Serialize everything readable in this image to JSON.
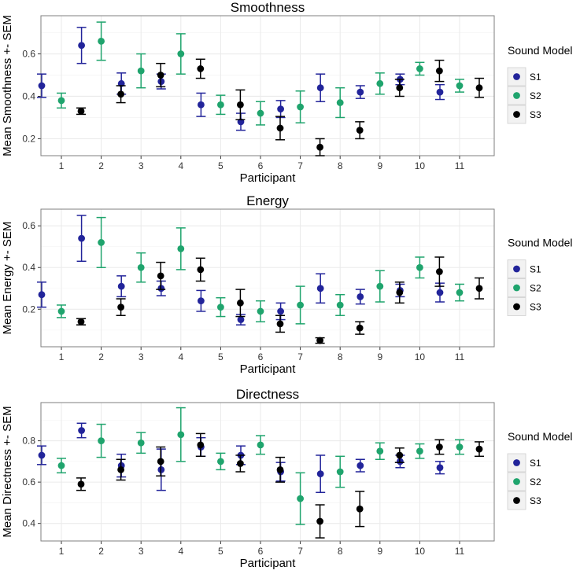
{
  "colors": {
    "S1": "#22249a",
    "S2": "#1fa46d",
    "S3": "#000000"
  },
  "chart_data": [
    {
      "type": "scatter",
      "title": "Smoothness",
      "xlabel": "Participant",
      "ylabel": "Mean  Smoothness +- SEM",
      "categories": [
        "1",
        "2",
        "3",
        "4",
        "5",
        "6",
        "7",
        "8",
        "9",
        "10",
        "11"
      ],
      "ylim": [
        0.12,
        0.78
      ],
      "yticks": [
        0.2,
        0.4,
        0.6
      ],
      "ytick_labels": [
        "0.2",
        "0.4",
        "0.6"
      ],
      "legend_title": "Sound Model",
      "legend_position": "right",
      "series": [
        {
          "name": "S1",
          "values": [
            0.45,
            0.64,
            0.46,
            0.47,
            0.36,
            0.28,
            0.34,
            0.44,
            0.42,
            0.48,
            0.42
          ],
          "sem": [
            0.055,
            0.085,
            0.05,
            0.035,
            0.055,
            0.04,
            0.04,
            0.065,
            0.03,
            0.025,
            0.035
          ]
        },
        {
          "name": "S2",
          "values": [
            0.38,
            0.66,
            0.52,
            0.6,
            0.36,
            0.32,
            0.35,
            0.37,
            0.46,
            0.53,
            0.45
          ],
          "sem": [
            0.035,
            0.09,
            0.08,
            0.095,
            0.045,
            0.055,
            0.075,
            0.07,
            0.05,
            0.03,
            0.03
          ]
        },
        {
          "name": "S3",
          "values": [
            0.33,
            0.41,
            0.5,
            0.53,
            0.36,
            0.25,
            0.16,
            0.24,
            0.44,
            0.52,
            0.44
          ],
          "sem": [
            0.015,
            0.04,
            0.055,
            0.045,
            0.07,
            0.055,
            0.04,
            0.04,
            0.04,
            0.05,
            0.045
          ]
        }
      ]
    },
    {
      "type": "scatter",
      "title": "Energy",
      "xlabel": "Participant",
      "ylabel": "Mean  Energy +- SEM",
      "categories": [
        "1",
        "2",
        "3",
        "4",
        "5",
        "6",
        "7",
        "8",
        "9",
        "10",
        "11"
      ],
      "ylim": [
        0.02,
        0.68
      ],
      "yticks": [
        0.2,
        0.4,
        0.6
      ],
      "ytick_labels": [
        "0.2",
        "0.4",
        "0.6"
      ],
      "legend_title": "Sound Model",
      "legend_position": "right",
      "series": [
        {
          "name": "S1",
          "values": [
            0.27,
            0.54,
            0.31,
            0.3,
            0.24,
            0.15,
            0.19,
            0.3,
            0.26,
            0.29,
            0.28
          ],
          "sem": [
            0.06,
            0.11,
            0.05,
            0.035,
            0.05,
            0.025,
            0.04,
            0.07,
            0.035,
            0.03,
            0.045
          ]
        },
        {
          "name": "S2",
          "values": [
            0.19,
            0.52,
            0.4,
            0.49,
            0.21,
            0.19,
            0.22,
            0.22,
            0.31,
            0.4,
            0.28
          ],
          "sem": [
            0.03,
            0.12,
            0.07,
            0.1,
            0.045,
            0.05,
            0.09,
            0.05,
            0.075,
            0.05,
            0.04
          ]
        },
        {
          "name": "S3",
          "values": [
            0.14,
            0.21,
            0.36,
            0.39,
            0.23,
            0.13,
            0.05,
            0.11,
            0.28,
            0.38,
            0.3
          ],
          "sem": [
            0.015,
            0.04,
            0.065,
            0.055,
            0.065,
            0.04,
            0.013,
            0.03,
            0.05,
            0.07,
            0.05
          ]
        }
      ]
    },
    {
      "type": "scatter",
      "title": "Directness",
      "xlabel": "Participant",
      "ylabel": "Mean  Directness +- SEM",
      "categories": [
        "1",
        "2",
        "3",
        "4",
        "5",
        "6",
        "7",
        "8",
        "9",
        "10",
        "11"
      ],
      "ylim": [
        0.315,
        0.985
      ],
      "yticks": [
        0.4,
        0.6,
        0.8
      ],
      "ytick_labels": [
        "0.4",
        "0.6",
        "0.8"
      ],
      "legend_title": "Sound Model",
      "legend_position": "right",
      "series": [
        {
          "name": "S1",
          "values": [
            0.73,
            0.85,
            0.68,
            0.66,
            0.77,
            0.73,
            0.65,
            0.64,
            0.68,
            0.7,
            0.67
          ],
          "sem": [
            0.045,
            0.035,
            0.055,
            0.1,
            0.045,
            0.045,
            0.045,
            0.09,
            0.03,
            0.03,
            0.03
          ]
        },
        {
          "name": "S2",
          "values": [
            0.68,
            0.8,
            0.79,
            0.83,
            0.7,
            0.78,
            0.52,
            0.65,
            0.75,
            0.75,
            0.77
          ],
          "sem": [
            0.035,
            0.08,
            0.05,
            0.13,
            0.04,
            0.045,
            0.125,
            0.075,
            0.04,
            0.035,
            0.035
          ]
        },
        {
          "name": "S3",
          "values": [
            0.59,
            0.66,
            0.7,
            0.78,
            0.69,
            0.66,
            0.41,
            0.47,
            0.73,
            0.77,
            0.76
          ],
          "sem": [
            0.03,
            0.05,
            0.07,
            0.055,
            0.04,
            0.06,
            0.08,
            0.085,
            0.035,
            0.035,
            0.035
          ]
        }
      ]
    }
  ]
}
